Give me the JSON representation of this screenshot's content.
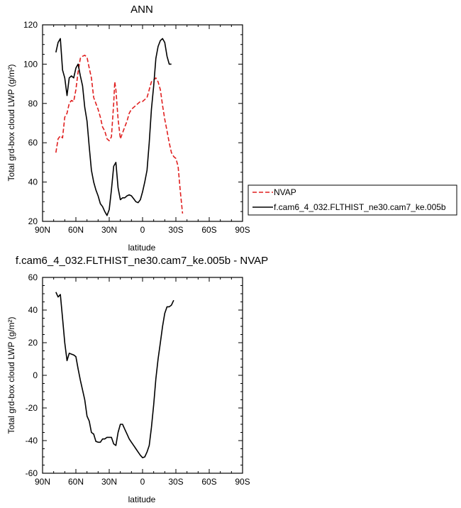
{
  "chart_data": [
    {
      "type": "line",
      "title": "ANN",
      "xlabel": "latitude",
      "ylabel": "Total grd-box cloud LWP (g/m²)",
      "xlim": [
        90,
        -90
      ],
      "ylim": [
        20,
        120
      ],
      "xticks": [
        90,
        60,
        30,
        0,
        -30,
        -60,
        -90
      ],
      "xtick_labels": [
        "90N",
        "60N",
        "30N",
        "0",
        "30S",
        "60S",
        "90S"
      ],
      "yticks": [
        20,
        40,
        60,
        80,
        100,
        120
      ],
      "ytick_labels": [
        "20",
        "40",
        "60",
        "80",
        "100",
        "120"
      ],
      "legend_position": "right",
      "series": [
        {
          "name": "NVAP",
          "color": "#e01f1f",
          "dash": "dashed",
          "points": [
            [
              78,
              55
            ],
            [
              76,
              62
            ],
            [
              74,
              63.5
            ],
            [
              72,
              62.5
            ],
            [
              70,
              73
            ],
            [
              68,
              75
            ],
            [
              66,
              80
            ],
            [
              64,
              81.5
            ],
            [
              62,
              81
            ],
            [
              60,
              87
            ],
            [
              58,
              96
            ],
            [
              56,
              103
            ],
            [
              54,
              104
            ],
            [
              52,
              104.5
            ],
            [
              50,
              103.5
            ],
            [
              48,
              98
            ],
            [
              46,
              93
            ],
            [
              44,
              83
            ],
            [
              42,
              80
            ],
            [
              40,
              77
            ],
            [
              38,
              73
            ],
            [
              36,
              68
            ],
            [
              34,
              66
            ],
            [
              32,
              62
            ],
            [
              30,
              61
            ],
            [
              28,
              63
            ],
            [
              26,
              80
            ],
            [
              25,
              91
            ],
            [
              24,
              87
            ],
            [
              22,
              72
            ],
            [
              21,
              67
            ],
            [
              20,
              62
            ],
            [
              18,
              65
            ],
            [
              16,
              68
            ],
            [
              14,
              71
            ],
            [
              12,
              75
            ],
            [
              10,
              77
            ],
            [
              8,
              78
            ],
            [
              6,
              79
            ],
            [
              4,
              80
            ],
            [
              2,
              81
            ],
            [
              0,
              81
            ],
            [
              -2,
              82
            ],
            [
              -4,
              83
            ],
            [
              -6,
              87
            ],
            [
              -8,
              91
            ],
            [
              -10,
              92
            ],
            [
              -12,
              93
            ],
            [
              -14,
              91
            ],
            [
              -16,
              87
            ],
            [
              -18,
              79
            ],
            [
              -20,
              72
            ],
            [
              -22,
              66
            ],
            [
              -24,
              60
            ],
            [
              -26,
              55
            ],
            [
              -28,
              53
            ],
            [
              -30,
              52
            ],
            [
              -32,
              48
            ],
            [
              -34,
              35
            ],
            [
              -36,
              24
            ]
          ]
        },
        {
          "name": "f.cam6_4_032.FLTHIST_ne30.cam7_ke.005b",
          "color": "#000000",
          "dash": "solid",
          "points": [
            [
              78,
              106
            ],
            [
              76,
              111
            ],
            [
              74,
              113
            ],
            [
              72,
              97
            ],
            [
              70,
              93
            ],
            [
              68,
              84
            ],
            [
              66,
              93
            ],
            [
              64,
              94
            ],
            [
              62,
              93
            ],
            [
              60,
              98
            ],
            [
              58,
              100
            ],
            [
              56,
              94
            ],
            [
              54,
              89
            ],
            [
              52,
              78
            ],
            [
              50,
              71
            ],
            [
              48,
              58
            ],
            [
              46,
              46
            ],
            [
              44,
              40
            ],
            [
              42,
              36
            ],
            [
              40,
              33
            ],
            [
              38,
              29
            ],
            [
              36,
              27.5
            ],
            [
              34,
              25
            ],
            [
              32,
              23
            ],
            [
              30,
              26
            ],
            [
              28,
              36
            ],
            [
              26,
              48
            ],
            [
              24,
              50
            ],
            [
              22,
              37
            ],
            [
              20,
              31
            ],
            [
              18,
              32
            ],
            [
              16,
              32
            ],
            [
              14,
              33
            ],
            [
              12,
              33.5
            ],
            [
              10,
              33
            ],
            [
              8,
              31.5
            ],
            [
              6,
              30
            ],
            [
              4,
              29.5
            ],
            [
              2,
              31
            ],
            [
              0,
              35
            ],
            [
              -2,
              40
            ],
            [
              -4,
              46
            ],
            [
              -6,
              60
            ],
            [
              -8,
              77
            ],
            [
              -10,
              89
            ],
            [
              -12,
              103
            ],
            [
              -14,
              109
            ],
            [
              -16,
              112
            ],
            [
              -18,
              113
            ],
            [
              -20,
              111
            ],
            [
              -22,
              104
            ],
            [
              -24,
              100
            ],
            [
              -26,
              100
            ]
          ]
        }
      ]
    },
    {
      "type": "line",
      "title": "f.cam6_4_032.FLTHIST_ne30.cam7_ke.005b - NVAP",
      "xlabel": "latitude",
      "ylabel": "Total grd-box cloud LWP (g/m²)",
      "xlim": [
        90,
        -90
      ],
      "ylim": [
        -60,
        60
      ],
      "xticks": [
        90,
        60,
        30,
        0,
        -30,
        -60,
        -90
      ],
      "xtick_labels": [
        "90N",
        "60N",
        "30N",
        "0",
        "30S",
        "60S",
        "90S"
      ],
      "yticks": [
        -60,
        -40,
        -20,
        0,
        20,
        40,
        60
      ],
      "ytick_labels": [
        "-60",
        "-40",
        "-20",
        "0",
        "20",
        "40",
        "60"
      ],
      "series": [
        {
          "color": "#000000",
          "dash": "solid",
          "points": [
            [
              78,
              51
            ],
            [
              76,
              48
            ],
            [
              74,
              49.5
            ],
            [
              72,
              35
            ],
            [
              70,
              20
            ],
            [
              68,
              9
            ],
            [
              66,
              13.5
            ],
            [
              64,
              13
            ],
            [
              62,
              12.5
            ],
            [
              60,
              11.5
            ],
            [
              58,
              4
            ],
            [
              56,
              -3
            ],
            [
              54,
              -9
            ],
            [
              52,
              -15
            ],
            [
              50,
              -25
            ],
            [
              48,
              -28
            ],
            [
              46,
              -35
            ],
            [
              44,
              -36
            ],
            [
              42,
              -40.5
            ],
            [
              40,
              -41
            ],
            [
              38,
              -41
            ],
            [
              36,
              -39
            ],
            [
              34,
              -39
            ],
            [
              32,
              -38
            ],
            [
              30,
              -38
            ],
            [
              28,
              -38
            ],
            [
              26,
              -42
            ],
            [
              24,
              -43
            ],
            [
              22,
              -35
            ],
            [
              20,
              -30
            ],
            [
              18,
              -30
            ],
            [
              16,
              -33
            ],
            [
              14,
              -36
            ],
            [
              12,
              -39
            ],
            [
              10,
              -41
            ],
            [
              8,
              -43
            ],
            [
              6,
              -45
            ],
            [
              4,
              -47
            ],
            [
              2,
              -49
            ],
            [
              0,
              -50.5
            ],
            [
              -2,
              -50
            ],
            [
              -4,
              -47
            ],
            [
              -6,
              -43
            ],
            [
              -8,
              -32
            ],
            [
              -10,
              -18
            ],
            [
              -12,
              -2
            ],
            [
              -14,
              10
            ],
            [
              -16,
              20
            ],
            [
              -18,
              30
            ],
            [
              -20,
              38
            ],
            [
              -22,
              42
            ],
            [
              -24,
              42
            ],
            [
              -26,
              43
            ],
            [
              -28,
              46
            ]
          ]
        }
      ]
    }
  ]
}
